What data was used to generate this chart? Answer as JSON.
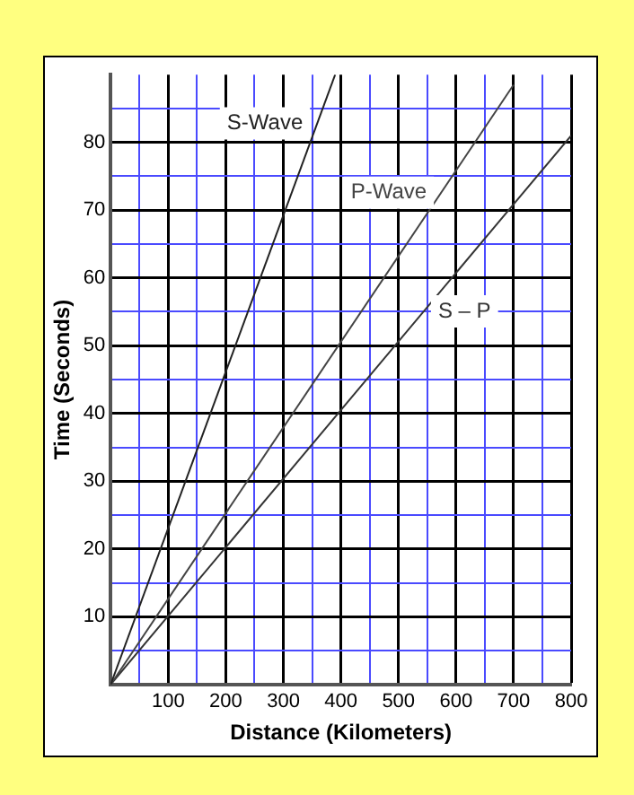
{
  "chart_data": {
    "type": "line",
    "xlabel": "Distance (Kilometers)",
    "ylabel": "Time (Seconds)",
    "xlim": [
      0,
      800
    ],
    "ylim": [
      0,
      90
    ],
    "xticks": [
      {
        "value": 0,
        "label": null
      },
      {
        "value": 50,
        "label": null
      },
      100,
      {
        "value": 150,
        "label": null
      },
      200,
      {
        "value": 250,
        "label": null
      },
      300,
      {
        "value": 350,
        "label": null
      },
      400,
      {
        "value": 450,
        "label": null
      },
      500,
      {
        "value": 550,
        "label": null
      },
      600,
      {
        "value": 650,
        "label": null
      },
      700,
      {
        "value": 750,
        "label": null
      },
      800
    ],
    "yticks": [
      {
        "value": 0,
        "label": null
      },
      {
        "value": 5,
        "label": null
      },
      10,
      {
        "value": 15,
        "label": null
      },
      20,
      {
        "value": 25,
        "label": null
      },
      30,
      {
        "value": 35,
        "label": null
      },
      40,
      {
        "value": 45,
        "label": null
      },
      50,
      {
        "value": 55,
        "label": null
      },
      60,
      {
        "value": 65,
        "label": null
      },
      70,
      {
        "value": 75,
        "label": null
      },
      80,
      {
        "value": 85,
        "label": null
      }
    ],
    "grid": true,
    "legend": false,
    "marker": "none",
    "line_style": "solid",
    "series": [
      {
        "name": "S-Wave",
        "color": "#222222",
        "x": [
          0,
          390
        ],
        "values": [
          0,
          90
        ]
      },
      {
        "name": "P-Wave",
        "color": "#444444",
        "x": [
          0,
          700
        ],
        "values": [
          0,
          88.5
        ]
      },
      {
        "name": "S – P",
        "color": "#333333",
        "x": [
          0,
          800
        ],
        "values": [
          0,
          81
        ]
      }
    ]
  }
}
